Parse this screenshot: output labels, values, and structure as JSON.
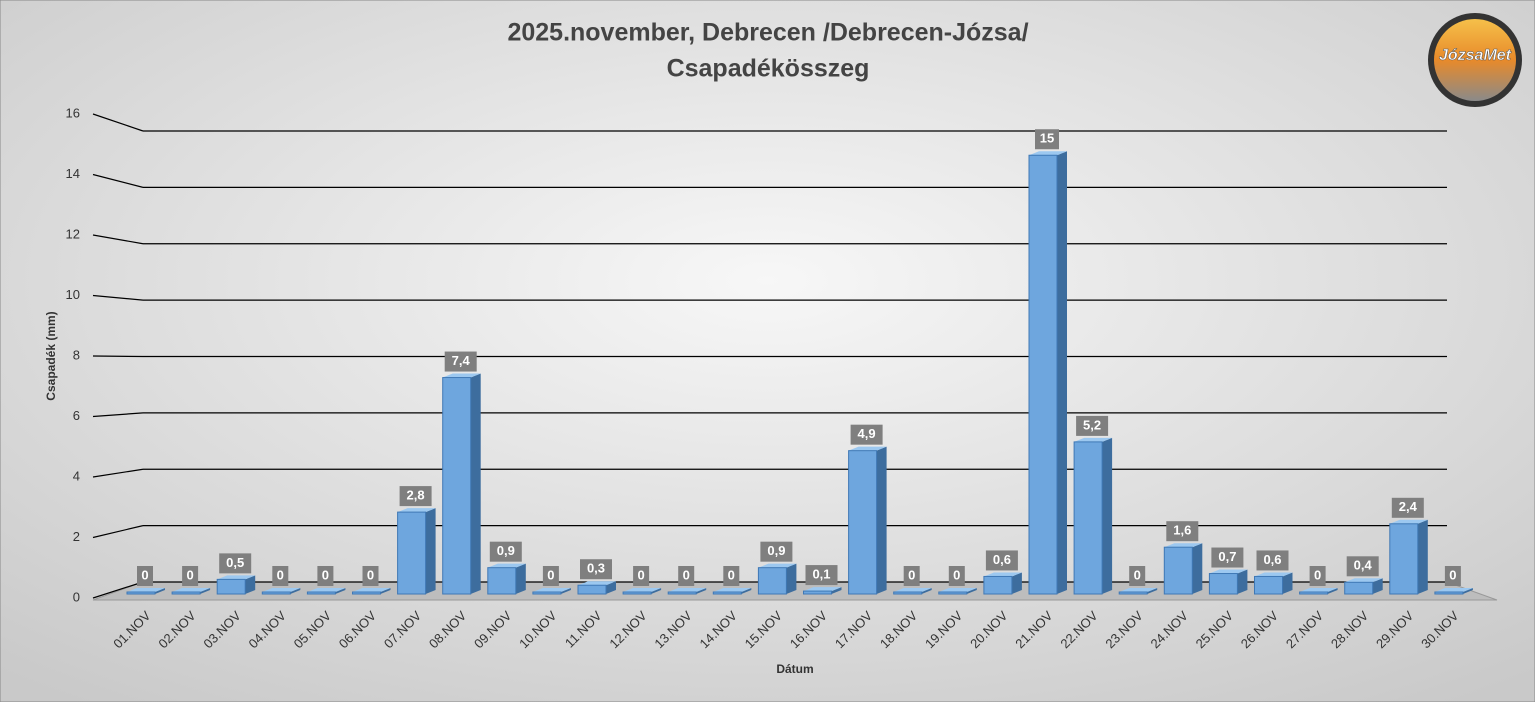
{
  "chart_data": {
    "type": "bar3d",
    "title": "2025.november, Debrecen /Debrecen-Józsa/",
    "subtitle": "Csapadékösszeg",
    "y_label": "Csapadék (mm)",
    "x_label": "Dátum",
    "logo": "JózsaMet",
    "categories": [
      "01.NOV",
      "02.NOV",
      "03.NOV",
      "04.NOV",
      "05.NOV",
      "06.NOV",
      "07.NOV",
      "08.NOV",
      "09.NOV",
      "10.NOV",
      "11.NOV",
      "12.NOV",
      "13.NOV",
      "14.NOV",
      "15.NOV",
      "16.NOV",
      "17.NOV",
      "18.NOV",
      "19.NOV",
      "20.NOV",
      "21.NOV",
      "22.NOV",
      "23.NOV",
      "24.NOV",
      "25.NOV",
      "26.NOV",
      "27.NOV",
      "28.NOV",
      "29.NOV",
      "30.NOV"
    ],
    "values": [
      0,
      0,
      0.5,
      0,
      0,
      0,
      2.8,
      7.4,
      0.9,
      0,
      0.3,
      0,
      0,
      0,
      0.9,
      0.1,
      4.9,
      0,
      0,
      0.6,
      15,
      5.2,
      0,
      1.6,
      0.7,
      0.6,
      0,
      0.4,
      2.4,
      0
    ],
    "value_labels": [
      "0",
      "0",
      "0,5",
      "0",
      "0",
      "0",
      "2,8",
      "7,4",
      "0,9",
      "0",
      "0,3",
      "0",
      "0",
      "0",
      "0,9",
      "0,1",
      "4,9",
      "0",
      "0",
      "0,6",
      "15",
      "5,2",
      "0",
      "1,6",
      "0,7",
      "0,6",
      "0",
      "0,4",
      "2,4",
      "0"
    ],
    "color": "#6ea6de",
    "ylim": [
      0,
      16
    ],
    "yticks": [
      0,
      2,
      4,
      6,
      8,
      10,
      12,
      14,
      16
    ],
    "grid": true
  }
}
